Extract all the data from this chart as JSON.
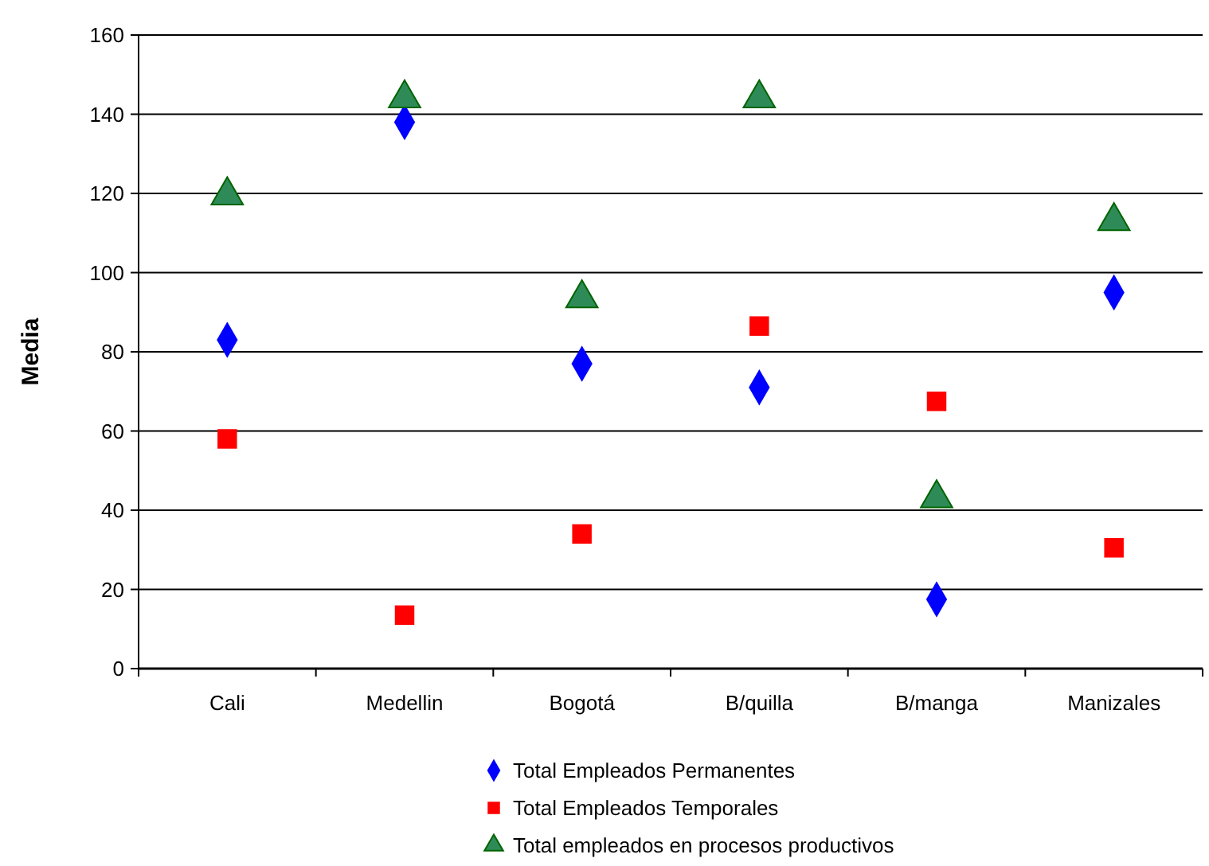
{
  "chart_data": {
    "type": "scatter",
    "ylabel": "Media",
    "categories": [
      "Cali",
      "Medellin",
      "Bogotá",
      "B/quilla",
      "B/manga",
      "Manizales"
    ],
    "series": [
      {
        "name": "Total Empleados Permanentes",
        "color": "#0000ff",
        "marker": "diamond",
        "values": [
          83,
          138,
          77,
          71,
          17.5,
          95
        ]
      },
      {
        "name": "Total Empleados Temporales",
        "color": "#ff0000",
        "marker": "square",
        "values": [
          58,
          13.5,
          34,
          86.5,
          67.5,
          30.5
        ]
      },
      {
        "name": "Total empleados en procesos productivos",
        "color": "#2e8b57",
        "marker": "triangle",
        "values": [
          119.5,
          144,
          93.5,
          144,
          43,
          113
        ]
      }
    ],
    "ylim": [
      0,
      160
    ],
    "yticks": [
      0,
      20,
      40,
      60,
      80,
      100,
      120,
      140,
      160
    ],
    "grid": "y",
    "legend": "bottom"
  }
}
